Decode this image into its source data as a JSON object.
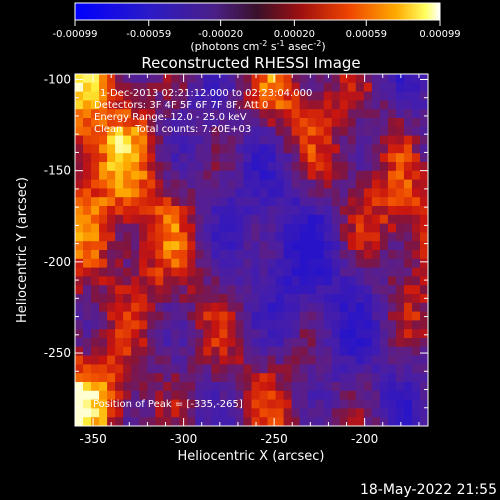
{
  "chart_data": {
    "type": "heatmap",
    "title": "Reconstructed RHESSI Image",
    "xlabel": "Heliocentric X (arcsec)",
    "ylabel": "Heliocentric Y (arcsec)",
    "xlim": [
      -360,
      -165
    ],
    "ylim": [
      -290,
      -97
    ],
    "x_ticks": [
      -350,
      -300,
      -250,
      -200
    ],
    "y_ticks": [
      -100,
      -150,
      -200,
      -250
    ],
    "colorbar": {
      "vmin": -0.00099,
      "vmax": 0.00099,
      "ticks": [
        "-0.00099",
        "-0.00059",
        "-0.00020",
        "0.00020",
        "0.00059",
        "0.00099"
      ],
      "units_parts": [
        "(photons cm",
        "-2",
        " s",
        "-1",
        " asec",
        "-2",
        ")"
      ]
    },
    "annotations": {
      "time_range": "1-Dec-2013 02:21:12.000 to 02:23:04.000",
      "detectors": "Detectors: 3F 4F 5F 6F 7F 8F, Att 0",
      "energy_range": "Energy Range: 12.0 - 25.0 keV",
      "clean": "Clean    Total counts: 7.20E+03",
      "peak": "Position of Peak = [-335,-265]"
    },
    "peak_position": [
      -335,
      -265
    ],
    "image_grid": {
      "nx": 44,
      "ny": 40,
      "unit_arcsec": 4.45
    }
  },
  "footer_date": "18-May-2022 21:55",
  "colors": {
    "background": "#000000",
    "foreground": "#ffffff",
    "colormap": [
      "#0000ff",
      "#3a1ab8",
      "#5a2a9a",
      "#8a1a4a",
      "#cc1a10",
      "#ee5500",
      "#ffaa00",
      "#ffff40",
      "#ffffff"
    ]
  }
}
